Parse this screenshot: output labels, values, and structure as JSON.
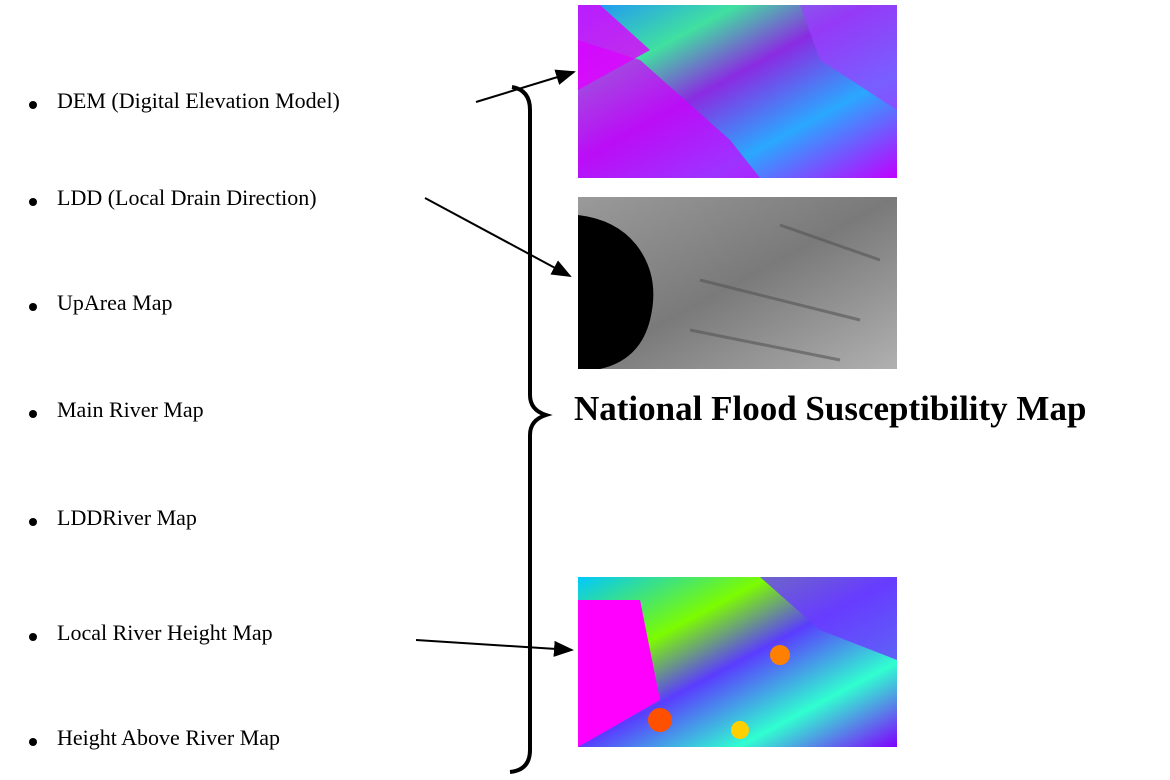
{
  "items": [
    "DEM (Digital Elevation Model)",
    "LDD (Local Drain Direction)",
    "UpArea Map",
    "Main River Map",
    "LDDRiver Map",
    "Local River Height Map",
    "Height Above River Map"
  ],
  "result": "National Flood Susceptibility Map"
}
